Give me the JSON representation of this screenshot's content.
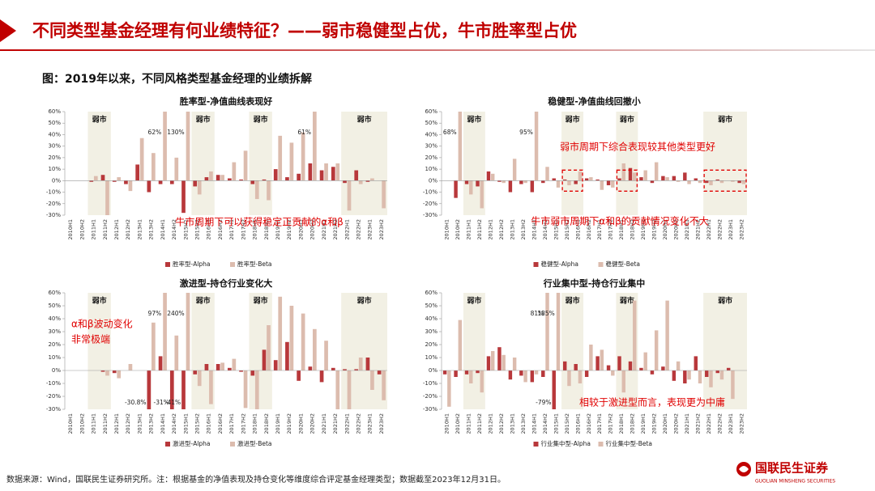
{
  "header": {
    "title": "不同类型基金经理有何业绩特征？——弱市稳健型占优，牛市胜率型占优",
    "subtitle": "图：2019年以来，不同风格类型基金经理的业绩拆解"
  },
  "chart_data": [
    {
      "type": "bar",
      "title": "胜率型-净值曲线表现好",
      "categories": [
        "2010H1",
        "2010H2",
        "2011H1",
        "2011H2",
        "2012H1",
        "2012H2",
        "2013H1",
        "2013H2",
        "2014H1",
        "2014H2",
        "2015H1",
        "2015H2",
        "2016H1",
        "2016H2",
        "2017H1",
        "2017H2",
        "2018H1",
        "2018H2",
        "2019H1",
        "2019H2",
        "2020H1",
        "2020H2",
        "2021H1",
        "2021H2",
        "2022H1",
        "2022H2",
        "2023H1",
        "2023H2"
      ],
      "series": [
        {
          "name": "胜率型-Alpha",
          "color": "#b8383b",
          "values": [
            0,
            0,
            -1,
            5,
            -1,
            -3,
            14,
            -10,
            -3,
            -3,
            -28,
            -5,
            3,
            5,
            2,
            1,
            -3,
            1,
            10,
            3,
            6,
            15,
            9,
            12,
            -2,
            9,
            -1,
            0
          ]
        },
        {
          "name": "胜率型-Beta",
          "color": "#dcbcae",
          "values": [
            0,
            0,
            4,
            -30,
            3,
            -9,
            37,
            24,
            62,
            20,
            130,
            -12,
            8,
            5,
            16,
            26,
            -16,
            -17,
            39,
            33,
            42,
            61,
            15,
            15,
            -26,
            -3,
            2,
            -24
          ],
          "value_labels": [
            null,
            null,
            null,
            null,
            null,
            null,
            null,
            null,
            "62%",
            null,
            "130%",
            null,
            null,
            null,
            null,
            null,
            null,
            null,
            null,
            null,
            null,
            "61%",
            null,
            null,
            null,
            null,
            null,
            null
          ]
        }
      ],
      "ylim": [
        -30,
        60
      ],
      "yticks": [
        {
          "value": -30,
          "label": "-30%"
        },
        {
          "value": -20,
          "label": "-20%"
        },
        {
          "value": -10,
          "label": "-10%"
        },
        {
          "value": 0,
          "label": "0%"
        },
        {
          "value": 10,
          "label": "10%"
        },
        {
          "value": 20,
          "label": "20%"
        },
        {
          "value": 30,
          "label": "30%"
        },
        {
          "value": 40,
          "label": "40%"
        },
        {
          "value": 50,
          "label": "50%"
        },
        {
          "value": 60,
          "label": "60%"
        }
      ],
      "weak_periods": [
        {
          "start": "2011H1",
          "end": "2011H2",
          "label": "弱市"
        },
        {
          "start": "2015H2",
          "end": "2016H1",
          "label": "弱市"
        },
        {
          "start": "2018H1",
          "end": "2018H2",
          "label": "弱市"
        },
        {
          "start": "2022H1",
          "end": "2023H2",
          "label": "弱市"
        }
      ],
      "annotations": [
        "牛市周期下可以获得稳定正贡献的α和β"
      ]
    },
    {
      "type": "bar",
      "title": "稳健型-净值曲线回撤小",
      "categories": [
        "2010H1",
        "2010H2",
        "2011H1",
        "2011H2",
        "2012H1",
        "2012H2",
        "2013H1",
        "2013H2",
        "2014H1",
        "2014H2",
        "2015H1",
        "2015H2",
        "2016H1",
        "2016H2",
        "2017H1",
        "2017H2",
        "2018H1",
        "2018H2",
        "2019H1",
        "2019H2",
        "2020H1",
        "2020H2",
        "2021H1",
        "2021H2",
        "2022H1",
        "2022H2",
        "2023H1",
        "2023H2"
      ],
      "series": [
        {
          "name": "稳健型-Alpha",
          "color": "#b8383b",
          "values": [
            0,
            -15,
            -3,
            -5,
            8,
            -1,
            -10,
            -3,
            -10,
            -2,
            2,
            1,
            -3,
            2,
            1,
            -4,
            2,
            11,
            3,
            -2,
            4,
            4,
            7,
            2,
            -2,
            1,
            0,
            -2
          ]
        },
        {
          "name": "稳健型-Beta",
          "color": "#dcbcae",
          "values": [
            0,
            68,
            -12,
            -24,
            6,
            -2,
            19,
            -2,
            95,
            12,
            -6,
            -4,
            8,
            3,
            -8,
            -6,
            15,
            7,
            9,
            16,
            3,
            -1,
            -3,
            -2,
            -4,
            -2,
            -1,
            -3
          ],
          "value_labels": [
            null,
            "68%",
            null,
            null,
            null,
            null,
            null,
            null,
            "95%",
            null,
            null,
            null,
            null,
            null,
            null,
            null,
            null,
            null,
            null,
            null,
            null,
            null,
            null,
            null,
            null,
            null,
            null,
            null
          ]
        }
      ],
      "ylim": [
        -30,
        60
      ],
      "yticks": [
        {
          "value": -30,
          "label": "-30%"
        },
        {
          "value": -20,
          "label": "-20%"
        },
        {
          "value": -10,
          "label": "-10%"
        },
        {
          "value": 0,
          "label": "0%"
        },
        {
          "value": 10,
          "label": "10%"
        },
        {
          "value": 20,
          "label": "20%"
        },
        {
          "value": 30,
          "label": "30%"
        },
        {
          "value": 40,
          "label": "40%"
        },
        {
          "value": 50,
          "label": "50%"
        },
        {
          "value": 60,
          "label": "60%"
        }
      ],
      "weak_periods": [
        {
          "start": "2011H1",
          "end": "2011H2",
          "label": "弱市"
        },
        {
          "start": "2015H2",
          "end": "2016H1",
          "label": "弱市"
        },
        {
          "start": "2018H1",
          "end": "2018H2",
          "label": "弱市"
        },
        {
          "start": "2022H1",
          "end": "2023H2",
          "label": "弱市"
        }
      ],
      "annotations": [
        "弱市周期下综合表现较其他类型更好",
        "牛市弱市周期下α和β的贡献情况变化不大"
      ]
    },
    {
      "type": "bar",
      "title": "激进型-持仓行业变化大",
      "categories": [
        "2010H1",
        "2010H2",
        "2011H1",
        "2011H2",
        "2012H1",
        "2012H2",
        "2013H1",
        "2013H2",
        "2014H1",
        "2014H2",
        "2015H1",
        "2015H2",
        "2016H1",
        "2016H2",
        "2017H1",
        "2017H2",
        "2018H1",
        "2018H2",
        "2019H1",
        "2019H2",
        "2020H1",
        "2020H2",
        "2021H1",
        "2021H2",
        "2022H1",
        "2022H2",
        "2023H1",
        "2023H2"
      ],
      "series": [
        {
          "name": "激进型-Alpha",
          "color": "#b8383b",
          "values": [
            0,
            0,
            0,
            -1,
            -2,
            0,
            0,
            -30.8,
            11,
            -31,
            -41,
            -3,
            5,
            5,
            2,
            -1,
            -4,
            16,
            8,
            22,
            -8,
            3,
            -9,
            2,
            1,
            1,
            10,
            -3
          ],
          "value_labels": [
            null,
            null,
            null,
            null,
            null,
            null,
            null,
            "-30.8%",
            null,
            "-31%",
            "-41%",
            null,
            null,
            null,
            null,
            null,
            null,
            null,
            null,
            null,
            null,
            null,
            null,
            null,
            null,
            null,
            null,
            null
          ]
        },
        {
          "name": "激进型-Beta",
          "color": "#dcbcae",
          "values": [
            0,
            0,
            0,
            -4,
            -6,
            5,
            0,
            37,
            97,
            27,
            240,
            -12,
            -26,
            6,
            9,
            -29,
            -30,
            35,
            57,
            50,
            44,
            32,
            23,
            -30,
            -30,
            10,
            -15,
            -23
          ],
          "value_labels": [
            null,
            null,
            null,
            null,
            null,
            null,
            null,
            null,
            "97%",
            null,
            "240%",
            null,
            null,
            null,
            null,
            null,
            null,
            null,
            null,
            null,
            null,
            null,
            null,
            null,
            null,
            null,
            null,
            null
          ]
        }
      ],
      "ylim": [
        -30,
        60
      ],
      "yticks": [
        {
          "value": -30,
          "label": "-30%"
        },
        {
          "value": -20,
          "label": "-20%"
        },
        {
          "value": -10,
          "label": "-10%"
        },
        {
          "value": 0,
          "label": "0%"
        },
        {
          "value": 10,
          "label": "10%"
        },
        {
          "value": 20,
          "label": "20%"
        },
        {
          "value": 30,
          "label": "30%"
        },
        {
          "value": 40,
          "label": "40%"
        },
        {
          "value": 50,
          "label": "50%"
        },
        {
          "value": 60,
          "label": "60%"
        }
      ],
      "weak_periods": [
        {
          "start": "2011H1",
          "end": "2011H2",
          "label": "弱市"
        },
        {
          "start": "2015H2",
          "end": "2016H1",
          "label": "弱市"
        },
        {
          "start": "2018H1",
          "end": "2018H2",
          "label": "弱市"
        },
        {
          "start": "2022H1",
          "end": "2023H2",
          "label": "弱市"
        }
      ],
      "annotations": [
        "α和β波动变化",
        "非常极端"
      ]
    },
    {
      "type": "bar",
      "title": "行业集中型-持仓行业集中",
      "categories": [
        "2010H1",
        "2010H2",
        "2011H1",
        "2011H2",
        "2012H1",
        "2012H2",
        "2013H1",
        "2013H2",
        "2014H1",
        "2014H2",
        "2015H1",
        "2015H2",
        "2016H1",
        "2016H2",
        "2017H1",
        "2017H2",
        "2018H1",
        "2018H2",
        "2019H1",
        "2019H2",
        "2020H1",
        "2020H2",
        "2021H1",
        "2021H2",
        "2022H1",
        "2022H2",
        "2023H1",
        "2023H2"
      ],
      "series": [
        {
          "name": "行业集中型-Alpha",
          "color": "#b8383b",
          "values": [
            -3,
            -5,
            -3,
            -2,
            11,
            18,
            -7,
            -4,
            -9,
            -5,
            -79,
            7,
            5,
            -5,
            11,
            4,
            11,
            7,
            2,
            -3,
            3,
            -8,
            -10,
            11,
            -5,
            -2,
            2,
            0
          ],
          "value_labels": [
            null,
            null,
            null,
            null,
            null,
            null,
            null,
            null,
            null,
            null,
            "-79%",
            null,
            null,
            null,
            null,
            null,
            null,
            null,
            null,
            null,
            null,
            null,
            null,
            null,
            null,
            null,
            null,
            null
          ]
        },
        {
          "name": "行业集中型-Beta",
          "color": "#dcbcae",
          "values": [
            -28,
            39,
            -10,
            -17,
            15,
            12,
            10,
            -9,
            -3,
            81,
            185,
            -12,
            -10,
            20,
            16,
            -4,
            -17,
            54,
            14,
            31,
            54,
            7,
            -7,
            -10,
            -13,
            -7,
            -22,
            0
          ],
          "value_labels": [
            null,
            null,
            null,
            null,
            null,
            null,
            null,
            null,
            null,
            "81%",
            "185%",
            null,
            null,
            null,
            null,
            null,
            null,
            null,
            null,
            null,
            null,
            null,
            null,
            null,
            null,
            null,
            null,
            null
          ]
        }
      ],
      "ylim": [
        -30,
        60
      ],
      "yticks": [
        {
          "value": -30,
          "label": "-30%"
        },
        {
          "value": -20,
          "label": "-20%"
        },
        {
          "value": -10,
          "label": "-10%"
        },
        {
          "value": 0,
          "label": "0%"
        },
        {
          "value": 10,
          "label": "10%"
        },
        {
          "value": 20,
          "label": "20%"
        },
        {
          "value": 30,
          "label": "30%"
        },
        {
          "value": 40,
          "label": "40%"
        },
        {
          "value": 50,
          "label": "50%"
        },
        {
          "value": 60,
          "label": "60%"
        }
      ],
      "weak_periods": [
        {
          "start": "2011H1",
          "end": "2011H2",
          "label": "弱市"
        },
        {
          "start": "2015H2",
          "end": "2016H1",
          "label": "弱市"
        },
        {
          "start": "2018H1",
          "end": "2018H2",
          "label": "弱市"
        },
        {
          "start": "2022H1",
          "end": "2023H2",
          "label": "弱市"
        }
      ],
      "annotations": [
        "相较于激进型而言，表现更为中庸"
      ]
    }
  ],
  "footer": {
    "source": "数据来源：Wind，国联民生证券研究所。注：根据基金的净值表现及持仓变化等维度综合评定基金经理类型；数据截至2023年12月31日。",
    "logo_cn": "国联民生证券",
    "logo_en": "GUOLIAN MINSHENG SECURITIES"
  }
}
